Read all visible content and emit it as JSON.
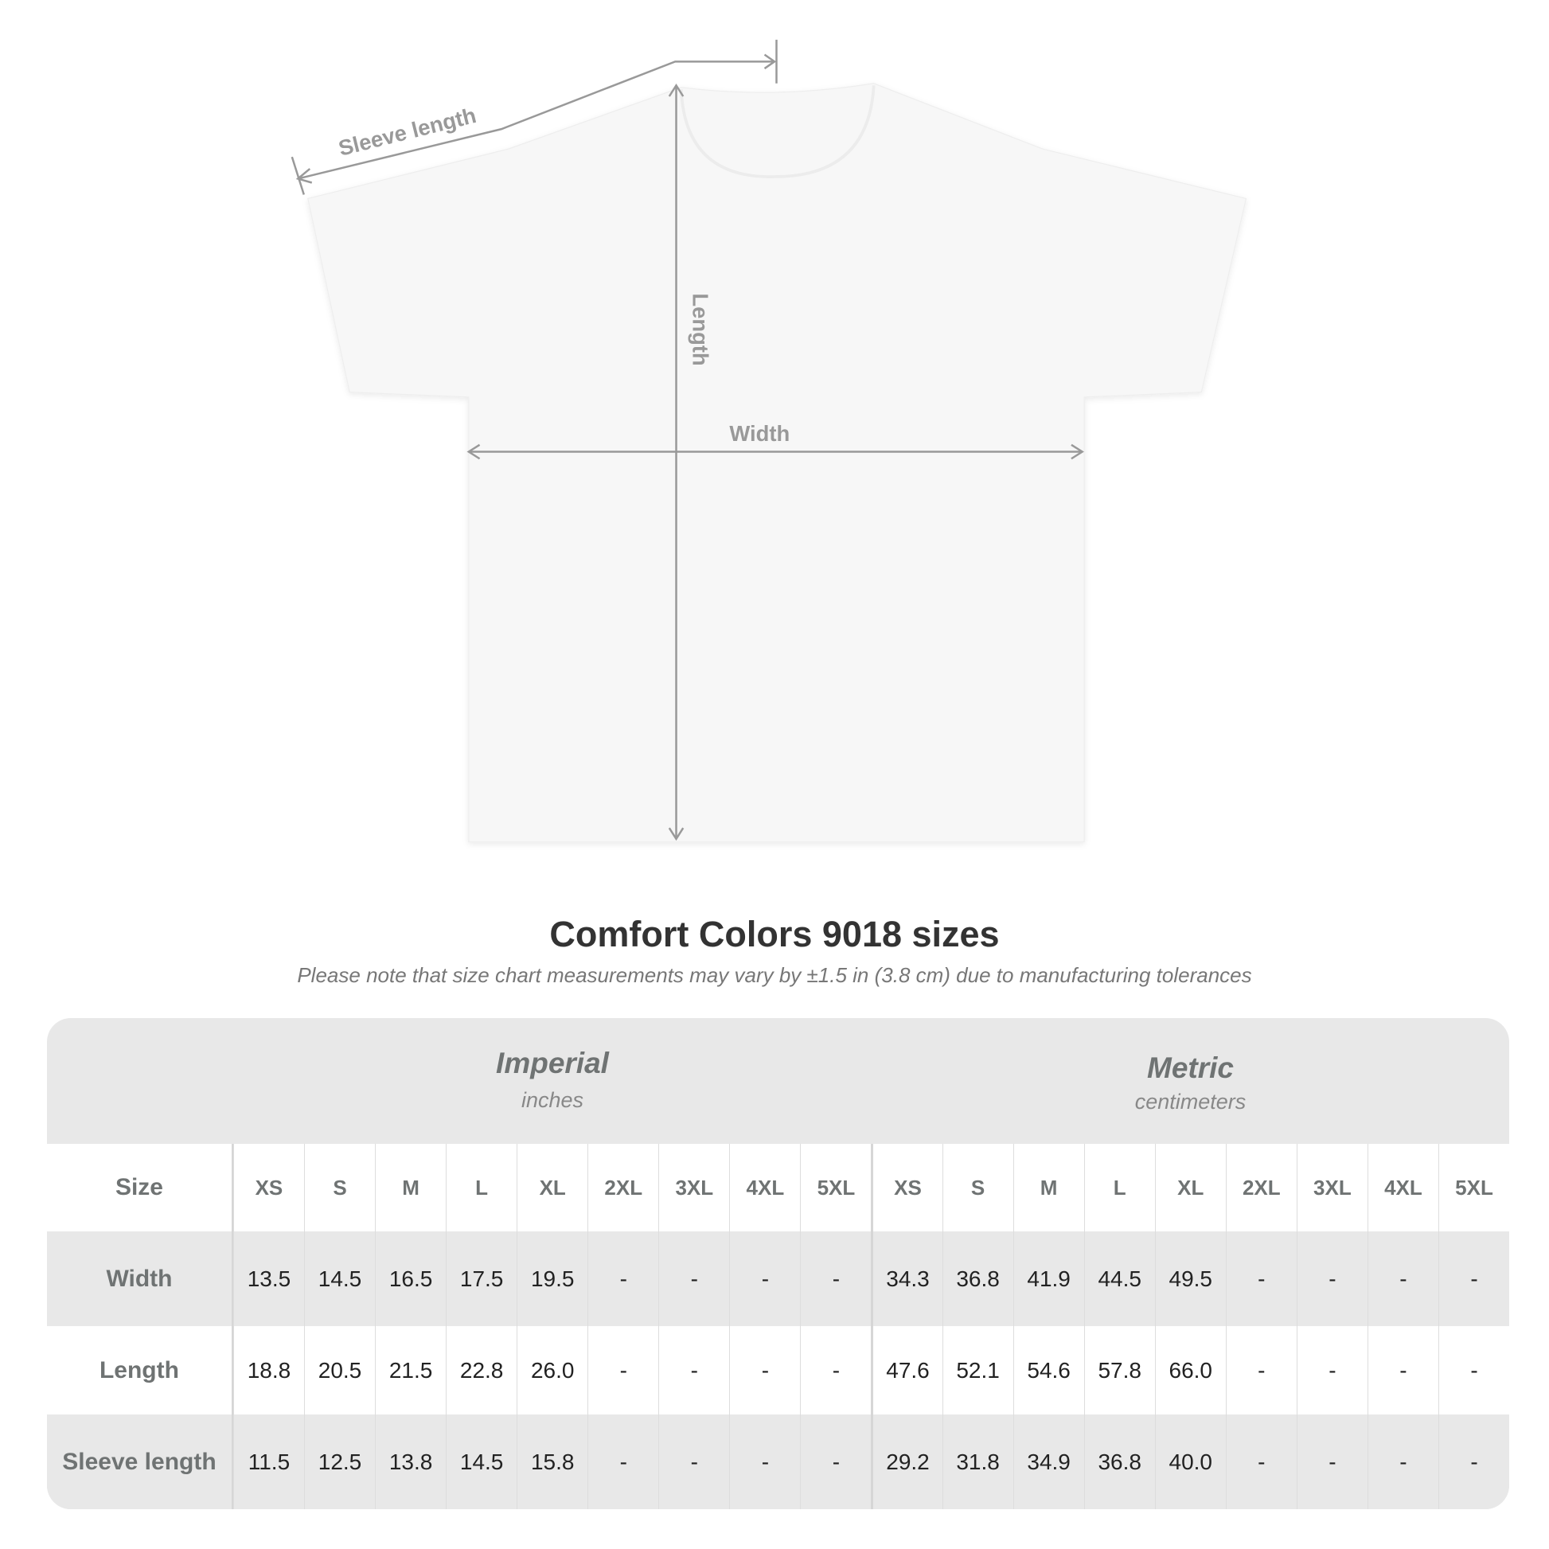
{
  "diagram": {
    "labels": {
      "sleeve": "Sleeve length",
      "length": "Length",
      "width": "Width"
    },
    "line_color": "#999999"
  },
  "title": "Comfort Colors 9018 sizes",
  "note": "Please note that size chart measurements may vary by ±1.5 in (3.8 cm) due to manufacturing tolerances",
  "table": {
    "imperial": {
      "label": "Imperial",
      "unit": "inches"
    },
    "metric": {
      "label": "Metric",
      "unit": "centimeters"
    },
    "size_label": "Size",
    "sizes": [
      "XS",
      "S",
      "M",
      "L",
      "XL",
      "2XL",
      "3XL",
      "4XL",
      "5XL",
      "XS",
      "S",
      "M",
      "L",
      "XL",
      "2XL",
      "3XL",
      "4XL",
      "5XL"
    ],
    "rows": [
      {
        "label": "Width",
        "values": [
          "13.5",
          "14.5",
          "16.5",
          "17.5",
          "19.5",
          "-",
          "-",
          "-",
          "-",
          "34.3",
          "36.8",
          "41.9",
          "44.5",
          "49.5",
          "-",
          "-",
          "-",
          "-"
        ]
      },
      {
        "label": "Length",
        "values": [
          "18.8",
          "20.5",
          "21.5",
          "22.8",
          "26.0",
          "-",
          "-",
          "-",
          "-",
          "47.6",
          "52.1",
          "54.6",
          "57.8",
          "66.0",
          "-",
          "-",
          "-",
          "-"
        ]
      },
      {
        "label": "Sleeve length",
        "values": [
          "11.5",
          "12.5",
          "13.8",
          "14.5",
          "15.8",
          "-",
          "-",
          "-",
          "-",
          "29.2",
          "31.8",
          "34.9",
          "36.8",
          "40.0",
          "-",
          "-",
          "-",
          "-"
        ]
      }
    ],
    "colors": {
      "header_bg": "#e8e8e8",
      "stripe_bg": "#e8e8e8",
      "label": "#6f7373"
    }
  }
}
